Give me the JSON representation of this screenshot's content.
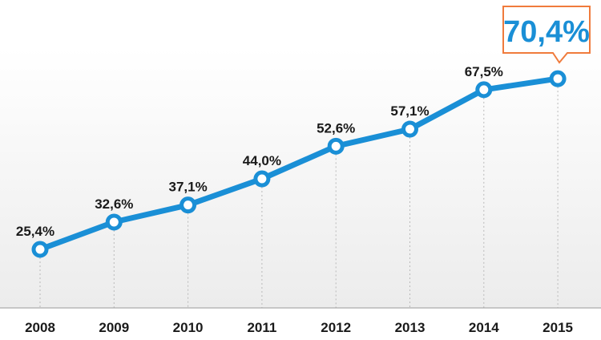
{
  "chart_data": {
    "type": "line",
    "categories": [
      "2008",
      "2009",
      "2010",
      "2011",
      "2012",
      "2013",
      "2014",
      "2015"
    ],
    "values": [
      25.4,
      32.6,
      37.1,
      44.0,
      52.6,
      57.1,
      67.5,
      70.4
    ],
    "data_labels": [
      "25,4%",
      "32,6%",
      "37,1%",
      "44,0%",
      "52,6%",
      "57,1%",
      "67,5%",
      "70,4%"
    ],
    "highlight": {
      "index": 7,
      "label": "70,4%"
    },
    "colors": {
      "line": "#1a8fd6",
      "callout_border": "#f07b3c",
      "callout_text": "#1a8fd6"
    },
    "grid": "vertical-dotted",
    "legend": "none"
  }
}
